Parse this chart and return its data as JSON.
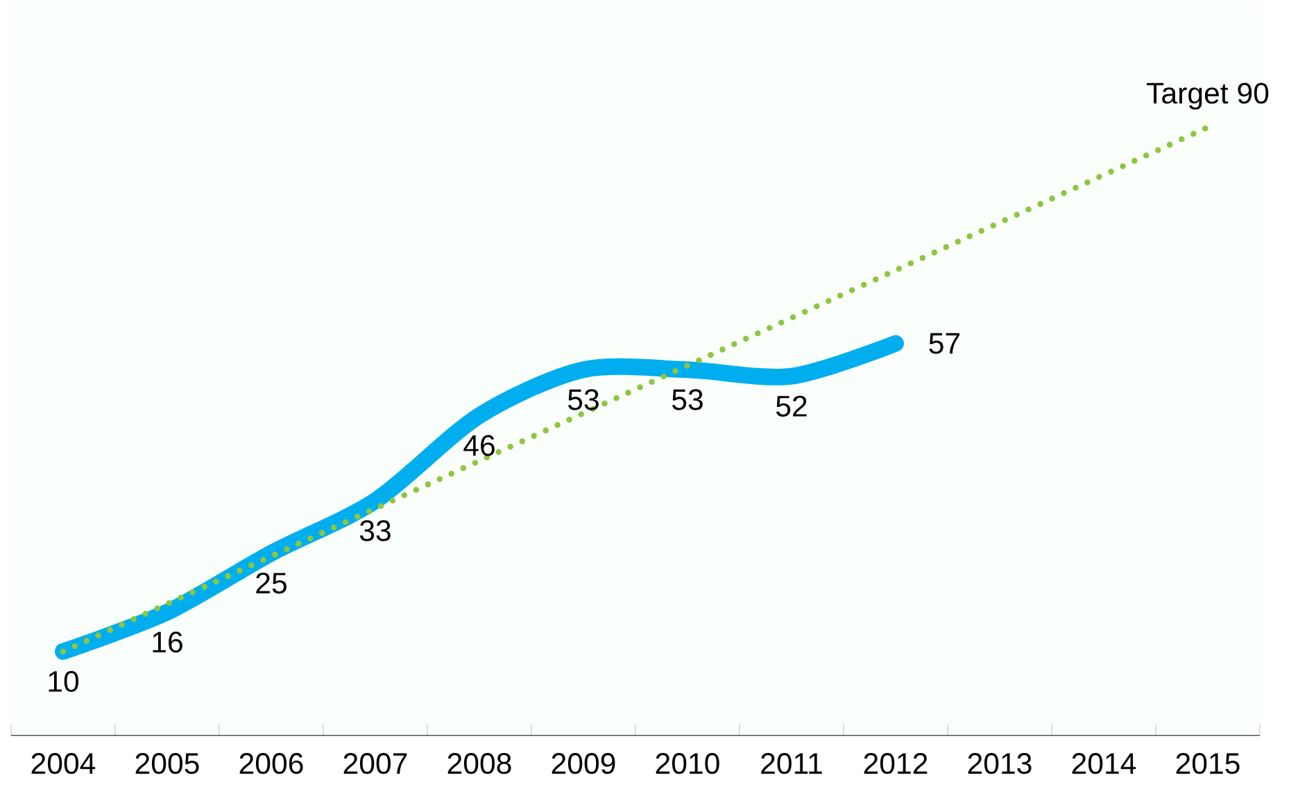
{
  "chart_data": {
    "type": "line",
    "categories": [
      "2004",
      "2005",
      "2006",
      "2007",
      "2008",
      "2009",
      "2010",
      "2011",
      "2012",
      "2013",
      "2014",
      "2015"
    ],
    "series": [
      {
        "color": "#00aeef",
        "values": [
          10,
          16,
          25,
          33,
          46,
          53,
          53,
          52,
          57,
          null,
          null,
          null
        ],
        "value_labels": [
          "10",
          "16",
          "25",
          "33",
          "46",
          "53",
          "53",
          "52",
          "57",
          null,
          null,
          null
        ]
      },
      {
        "color": "#8dc63f",
        "line_style": "dotted",
        "values": [
          10,
          null,
          null,
          null,
          null,
          null,
          null,
          null,
          null,
          null,
          null,
          90
        ]
      }
    ],
    "annotations": [
      {
        "text": "Target 90",
        "x": "2015",
        "y": 90
      }
    ]
  }
}
